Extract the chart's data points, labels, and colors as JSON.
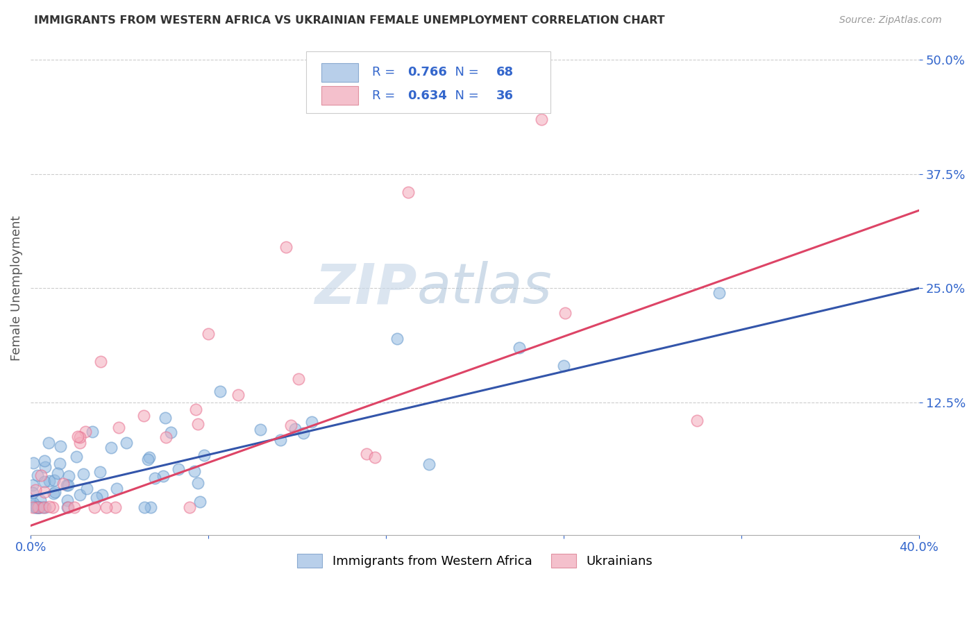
{
  "title": "IMMIGRANTS FROM WESTERN AFRICA VS UKRAINIAN FEMALE UNEMPLOYMENT CORRELATION CHART",
  "source": "Source: ZipAtlas.com",
  "ylabel": "Female Unemployment",
  "watermark_zip": "ZIP",
  "watermark_atlas": "atlas",
  "xlim": [
    0.0,
    0.4
  ],
  "ylim": [
    -0.02,
    0.52
  ],
  "ytick_positions": [
    0.125,
    0.25,
    0.375,
    0.5
  ],
  "ytick_labels": [
    "12.5%",
    "25.0%",
    "37.5%",
    "50.0%"
  ],
  "blue_color": "#90B8E0",
  "blue_edge": "#6699CC",
  "pink_color": "#F4AABB",
  "pink_edge": "#E87090",
  "blue_line_color": "#3355AA",
  "pink_line_color": "#DD4466",
  "blue_R": "0.766",
  "blue_N": "68",
  "pink_R": "0.634",
  "pink_N": "36",
  "blue_label": "Immigrants from Western Africa",
  "pink_label": "Ukrainians",
  "blue_line_x0": 0.0,
  "blue_line_y0": 0.022,
  "blue_line_x1": 0.4,
  "blue_line_y1": 0.25,
  "pink_line_x0": 0.0,
  "pink_line_y0": -0.01,
  "pink_line_x1": 0.4,
  "pink_line_y1": 0.335,
  "legend_text_color": "#3366CC",
  "tick_color": "#3366CC",
  "grid_color": "#CCCCCC",
  "title_color": "#333333",
  "source_color": "#999999"
}
